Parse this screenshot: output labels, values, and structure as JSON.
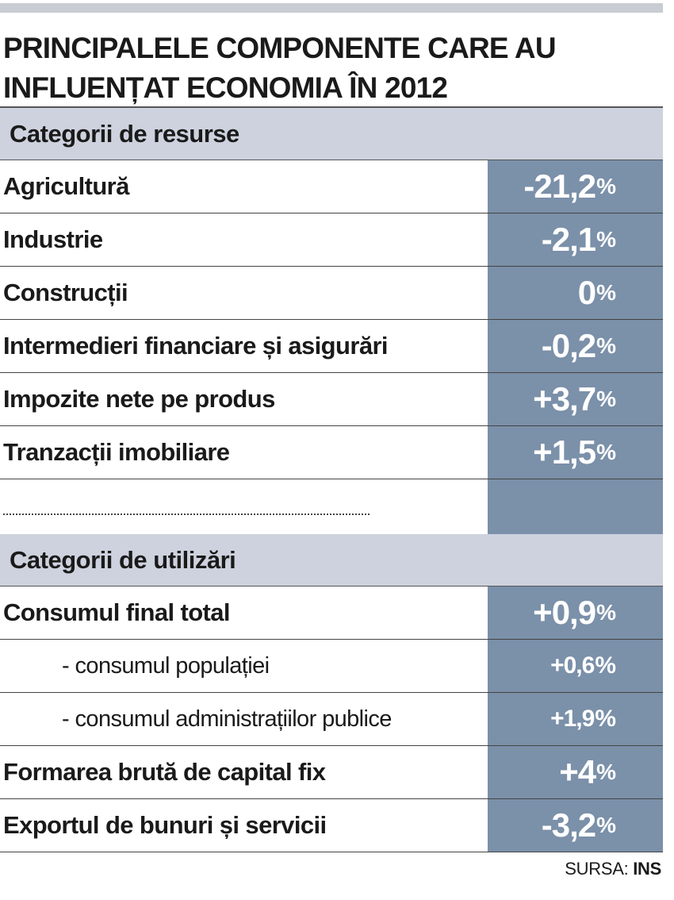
{
  "title": "PRINCIPALELE COMPONENTE CARE AU INFLUENȚAT ECONOMIA ÎN 2012",
  "resources": {
    "header": "Categorii de resurse",
    "rows": [
      {
        "label": "Agricultură",
        "value": "-21,2",
        "unit": "%"
      },
      {
        "label": "Industrie",
        "value": "-2,1",
        "unit": "%"
      },
      {
        "label": "Construcții",
        "value": "0",
        "unit": "%"
      },
      {
        "label": "Intermedieri financiare și asigurări",
        "value": "-0,2",
        "unit": "%"
      },
      {
        "label": "Impozite nete pe produs",
        "value": "+3,7",
        "unit": "%"
      },
      {
        "label": "Tranzacții imobiliare",
        "value": "+1,5",
        "unit": "%"
      }
    ]
  },
  "uses": {
    "header": "Categorii de utilizări",
    "rows": [
      {
        "label": "Consumul final total",
        "value": "+0,9",
        "unit": "%"
      },
      {
        "label": "- consumul populației",
        "value": "+0,6",
        "unit": "%"
      },
      {
        "label": "- consumul administrațiilor publice",
        "value": "+1,9",
        "unit": "%"
      },
      {
        "label": "Formarea brută de capital fix",
        "value": "+4",
        "unit": "%"
      },
      {
        "label": "Exportul de bunuri și servicii",
        "value": "-3,2",
        "unit": "%"
      }
    ]
  },
  "source": {
    "prefix": "SURSA:",
    "name": "INS"
  }
}
